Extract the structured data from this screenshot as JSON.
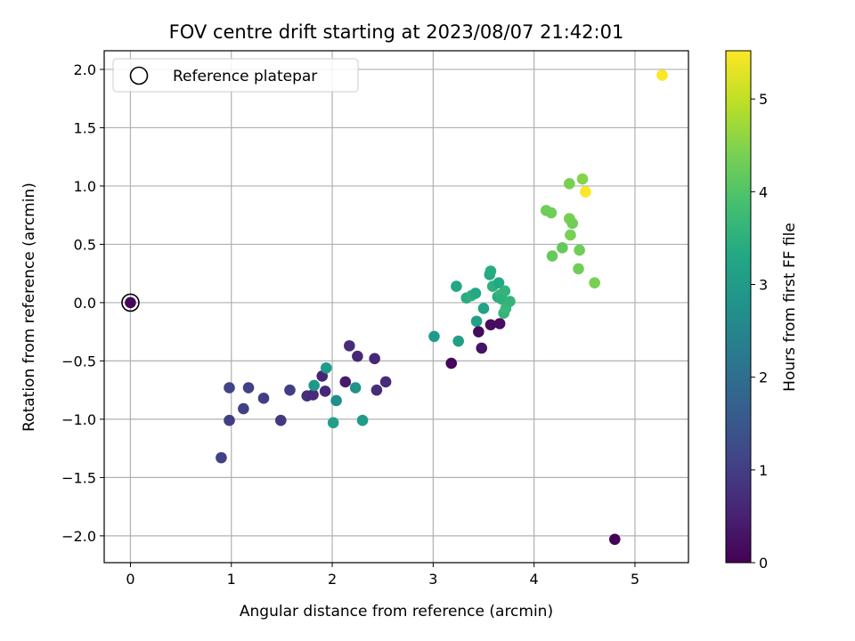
{
  "chart_data": {
    "type": "scatter",
    "title": "FOV centre drift starting at 2023/08/07 21:42:01",
    "xlabel": "Angular distance from reference (arcmin)",
    "ylabel": "Rotation from reference (arcmin)",
    "xlim": [
      -0.26,
      5.53
    ],
    "ylim": [
      -2.23,
      2.16
    ],
    "xticks": [
      0,
      1,
      2,
      3,
      4,
      5
    ],
    "yticks": [
      -2.0,
      -1.5,
      -1.0,
      -0.5,
      0.0,
      0.5,
      1.0,
      1.5,
      2.0
    ],
    "grid": true,
    "legend": {
      "location": "top-left",
      "entries": [
        "Reference platepar"
      ]
    },
    "colorbar": {
      "label": "Hours from first FF file",
      "range": [
        0,
        5.52
      ],
      "ticks": [
        0,
        1,
        2,
        3,
        4,
        5
      ],
      "colormap": "viridis"
    },
    "reference_point": {
      "x": 0,
      "y": 0,
      "label": "Reference platepar"
    },
    "points": [
      {
        "x": 0.0,
        "y": 0.0,
        "t": 0.1
      },
      {
        "x": 0.9,
        "y": -1.33,
        "t": 1.05
      },
      {
        "x": 0.98,
        "y": -1.01,
        "t": 1.0
      },
      {
        "x": 0.98,
        "y": -0.73,
        "t": 1.1
      },
      {
        "x": 1.12,
        "y": -0.91,
        "t": 1.05
      },
      {
        "x": 1.17,
        "y": -0.73,
        "t": 1.05
      },
      {
        "x": 1.32,
        "y": -0.82,
        "t": 1.0
      },
      {
        "x": 1.49,
        "y": -1.01,
        "t": 0.9
      },
      {
        "x": 1.58,
        "y": -0.75,
        "t": 1.0
      },
      {
        "x": 1.75,
        "y": -0.8,
        "t": 0.75
      },
      {
        "x": 1.81,
        "y": -0.79,
        "t": 0.65
      },
      {
        "x": 1.82,
        "y": -0.71,
        "t": 2.9
      },
      {
        "x": 1.9,
        "y": -0.63,
        "t": 0.55
      },
      {
        "x": 1.93,
        "y": -0.76,
        "t": 0.6
      },
      {
        "x": 1.94,
        "y": -0.56,
        "t": 3.0
      },
      {
        "x": 2.01,
        "y": -1.03,
        "t": 3.1
      },
      {
        "x": 2.04,
        "y": -0.84,
        "t": 2.7
      },
      {
        "x": 2.13,
        "y": -0.68,
        "t": 0.4
      },
      {
        "x": 2.17,
        "y": -0.37,
        "t": 0.7
      },
      {
        "x": 2.23,
        "y": -0.73,
        "t": 2.8
      },
      {
        "x": 2.25,
        "y": -0.46,
        "t": 0.6
      },
      {
        "x": 2.3,
        "y": -1.01,
        "t": 3.0
      },
      {
        "x": 2.42,
        "y": -0.48,
        "t": 0.6
      },
      {
        "x": 2.44,
        "y": -0.75,
        "t": 0.7
      },
      {
        "x": 2.53,
        "y": -0.68,
        "t": 0.65
      },
      {
        "x": 3.01,
        "y": -0.29,
        "t": 3.0
      },
      {
        "x": 3.18,
        "y": -0.52,
        "t": 0.1
      },
      {
        "x": 3.23,
        "y": 0.14,
        "t": 3.3
      },
      {
        "x": 3.25,
        "y": -0.33,
        "t": 3.1
      },
      {
        "x": 3.33,
        "y": 0.04,
        "t": 3.4
      },
      {
        "x": 3.38,
        "y": 0.06,
        "t": 3.5
      },
      {
        "x": 3.42,
        "y": 0.08,
        "t": 3.3
      },
      {
        "x": 3.43,
        "y": -0.16,
        "t": 3.1
      },
      {
        "x": 3.45,
        "y": -0.25,
        "t": 0.15
      },
      {
        "x": 3.48,
        "y": -0.39,
        "t": 0.3
      },
      {
        "x": 3.5,
        "y": -0.05,
        "t": 3.2
      },
      {
        "x": 3.56,
        "y": 0.24,
        "t": 3.3
      },
      {
        "x": 3.57,
        "y": 0.27,
        "t": 3.4
      },
      {
        "x": 3.57,
        "y": -0.19,
        "t": 0.2
      },
      {
        "x": 3.59,
        "y": 0.14,
        "t": 3.5
      },
      {
        "x": 3.64,
        "y": 0.05,
        "t": 3.4
      },
      {
        "x": 3.65,
        "y": 0.17,
        "t": 3.3
      },
      {
        "x": 3.66,
        "y": -0.18,
        "t": 0.2
      },
      {
        "x": 3.67,
        "y": 0.07,
        "t": 3.6
      },
      {
        "x": 3.68,
        "y": 0.03,
        "t": 3.5
      },
      {
        "x": 3.7,
        "y": -0.09,
        "t": 3.6
      },
      {
        "x": 3.71,
        "y": 0.1,
        "t": 3.6
      },
      {
        "x": 3.72,
        "y": -0.05,
        "t": 3.7
      },
      {
        "x": 3.76,
        "y": 0.01,
        "t": 3.6
      },
      {
        "x": 4.12,
        "y": 0.79,
        "t": 4.3
      },
      {
        "x": 4.17,
        "y": 0.77,
        "t": 4.3
      },
      {
        "x": 4.18,
        "y": 0.4,
        "t": 4.2
      },
      {
        "x": 4.28,
        "y": 0.47,
        "t": 4.2
      },
      {
        "x": 4.35,
        "y": 1.02,
        "t": 4.4
      },
      {
        "x": 4.35,
        "y": 0.72,
        "t": 4.4
      },
      {
        "x": 4.36,
        "y": 0.58,
        "t": 4.4
      },
      {
        "x": 4.38,
        "y": 0.68,
        "t": 4.3
      },
      {
        "x": 4.44,
        "y": 0.29,
        "t": 4.3
      },
      {
        "x": 4.45,
        "y": 0.45,
        "t": 4.3
      },
      {
        "x": 4.48,
        "y": 1.06,
        "t": 4.5
      },
      {
        "x": 4.51,
        "y": 0.95,
        "t": 5.5
      },
      {
        "x": 4.6,
        "y": 0.17,
        "t": 4.4
      },
      {
        "x": 4.8,
        "y": -2.03,
        "t": 0.05
      },
      {
        "x": 5.27,
        "y": 1.95,
        "t": 5.5
      }
    ]
  }
}
